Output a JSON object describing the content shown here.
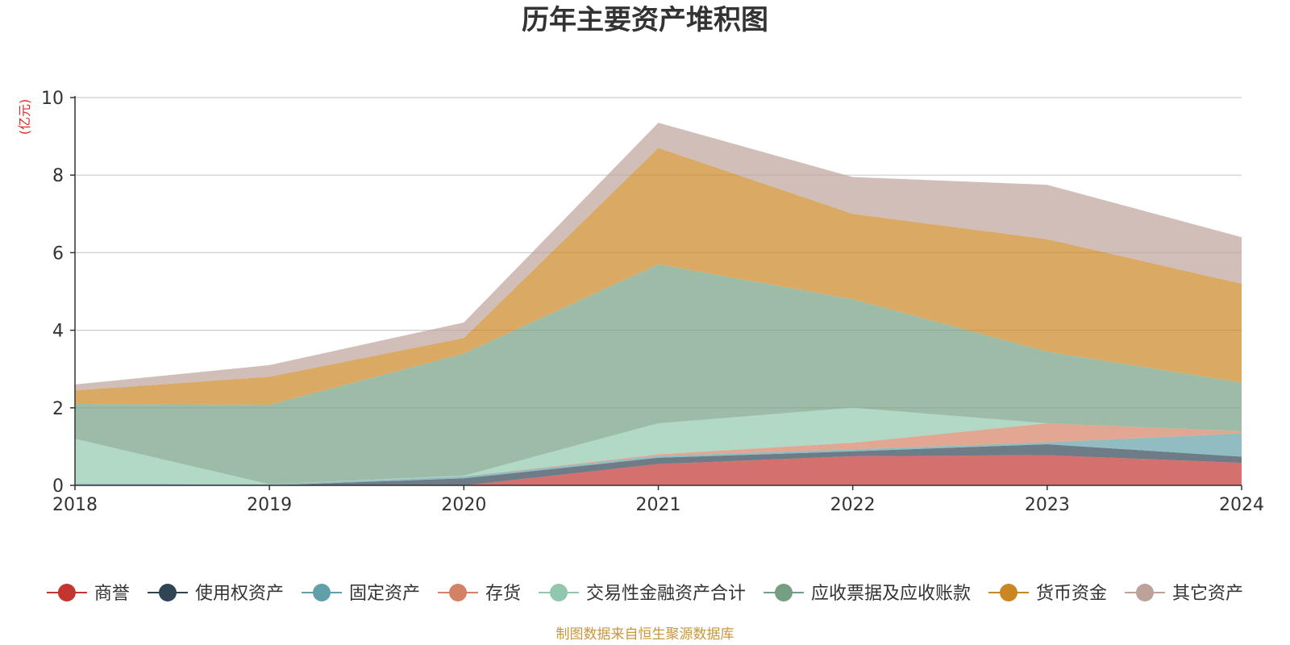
{
  "colors": {
    "source_text": "#c8963e",
    "unit_text": "#e8251f",
    "grid": "#cccccc",
    "axis": "#333333"
  },
  "chart_data": {
    "type": "area",
    "stacked": true,
    "title": "历年主要资产堆积图",
    "ylabel": "(亿元)",
    "xlabel": "",
    "ylim": [
      0,
      10
    ],
    "yticks": [
      0,
      2,
      4,
      6,
      8,
      10
    ],
    "x": [
      "2018",
      "2019",
      "2020",
      "2021",
      "2022",
      "2023",
      "2024"
    ],
    "legend_position": "bottom",
    "source": "制图数据来自恒生聚源数据库",
    "series": [
      {
        "name": "商誉",
        "color": "#c23531",
        "values": [
          0,
          0,
          0,
          0.55,
          0.75,
          0.78,
          0.58
        ]
      },
      {
        "name": "使用权资产",
        "color": "#2f4554",
        "values": [
          0,
          0,
          0.18,
          0.16,
          0.13,
          0.28,
          0.16
        ]
      },
      {
        "name": "固定资产",
        "color": "#61a0a8",
        "values": [
          0.05,
          0.03,
          0.05,
          0.05,
          0.05,
          0.05,
          0.6
        ]
      },
      {
        "name": "存货",
        "color": "#d48265",
        "values": [
          0,
          0,
          0,
          0.04,
          0.17,
          0.49,
          0.06
        ]
      },
      {
        "name": "交易性金融资产合计",
        "color": "#91c7ae",
        "values": [
          1.15,
          0,
          0.02,
          0.8,
          0.9,
          0,
          0
        ]
      },
      {
        "name": "应收票据及应收账款",
        "color": "#749f83",
        "values": [
          0.9,
          2.05,
          3.15,
          4.1,
          2.8,
          1.85,
          1.25
        ]
      },
      {
        "name": "货币资金",
        "color": "#ca8622",
        "values": [
          0.35,
          0.72,
          0.4,
          3.0,
          2.2,
          2.9,
          2.55
        ]
      },
      {
        "name": "其它资产",
        "color": "#bda29a",
        "values": [
          0.15,
          0.3,
          0.4,
          0.65,
          0.95,
          1.4,
          1.2
        ]
      }
    ]
  }
}
